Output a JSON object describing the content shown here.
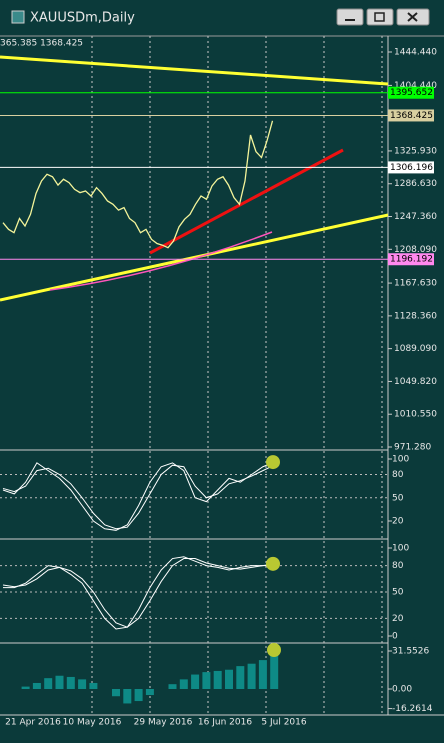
{
  "window": {
    "title": "XAUUSDm,Daily"
  },
  "chart": {
    "info": "365.385 1368.425",
    "price_ticks": [
      {
        "value": 1444.44,
        "label": "1444.440"
      },
      {
        "value": 1404.44,
        "label": "1404.440"
      },
      {
        "value": 1325.93,
        "label": "1325.930"
      },
      {
        "value": 1286.63,
        "label": "1286.630"
      },
      {
        "value": 1247.36,
        "label": "1247.360"
      },
      {
        "value": 1208.09,
        "label": "1208.090"
      },
      {
        "value": 1167.63,
        "label": "1167.630"
      },
      {
        "value": 1128.36,
        "label": "1128.360"
      },
      {
        "value": 1089.09,
        "label": "1089.090"
      },
      {
        "value": 1049.82,
        "label": "1049.820"
      },
      {
        "value": 1010.55,
        "label": "1010.550"
      },
      {
        "value": 971.28,
        "label": "971.280"
      }
    ],
    "price_tags": [
      {
        "value": 1395.652,
        "label": "1395.652",
        "color": "#00ff00"
      },
      {
        "value": 1368.425,
        "label": "1368.425",
        "color": "#d8cfa0"
      },
      {
        "value": 1306.196,
        "label": "1306.196",
        "color": "#ffffff"
      },
      {
        "value": 1196.192,
        "label": "1196.192",
        "color": "#ff88ee"
      }
    ],
    "closes": [
      1240,
      1232,
      1228,
      1245,
      1236,
      1250,
      1275,
      1290,
      1298,
      1295,
      1285,
      1292,
      1288,
      1280,
      1276,
      1278,
      1272,
      1282,
      1275,
      1266,
      1262,
      1255,
      1258,
      1245,
      1240,
      1228,
      1232,
      1220,
      1215,
      1213,
      1210,
      1218,
      1235,
      1244,
      1250,
      1262,
      1272,
      1268,
      1284,
      1292,
      1295,
      1285,
      1270,
      1262,
      1290,
      1345,
      1325,
      1318,
      1338,
      1362
    ],
    "osc1": {
      "ticks": [
        100,
        80,
        50,
        20
      ],
      "main": [
        60,
        55,
        70,
        95,
        85,
        75,
        60,
        40,
        20,
        10,
        8,
        15,
        40,
        70,
        90,
        95,
        85,
        50,
        45,
        60,
        75,
        70,
        80,
        90,
        96
      ],
      "signal": [
        62,
        58,
        65,
        85,
        88,
        80,
        68,
        50,
        30,
        15,
        10,
        12,
        30,
        55,
        80,
        92,
        90,
        65,
        50,
        55,
        68,
        72,
        78,
        85,
        92
      ]
    },
    "osc2": {
      "ticks": [
        100,
        80,
        50,
        20,
        0
      ],
      "main": [
        55,
        55,
        60,
        70,
        80,
        78,
        70,
        60,
        40,
        20,
        8,
        10,
        30,
        55,
        75,
        88,
        90,
        85,
        80,
        78,
        75,
        78,
        80,
        80,
        82
      ],
      "signal": [
        58,
        56,
        58,
        65,
        75,
        78,
        74,
        65,
        50,
        30,
        15,
        10,
        20,
        40,
        62,
        80,
        88,
        88,
        83,
        80,
        77,
        76,
        78,
        80,
        80
      ]
    },
    "osc3": {
      "ticks": [
        {
          "value": 31.5526,
          "label": "31.5526"
        },
        {
          "value": 0,
          "label": "0.00"
        },
        {
          "value": -16.2614,
          "label": "-16.2614"
        }
      ],
      "hist": [
        0,
        0,
        2,
        5,
        9,
        11,
        10,
        8,
        5,
        0,
        -6,
        -12,
        -10,
        -5,
        0,
        4,
        8,
        12,
        14,
        15,
        16,
        19,
        21,
        24,
        30
      ]
    },
    "dates": [
      "21 Apr 2016",
      "10 May 2016",
      "29 May 2016",
      "16 Jun 2016",
      "5 Jul 2016"
    ]
  }
}
